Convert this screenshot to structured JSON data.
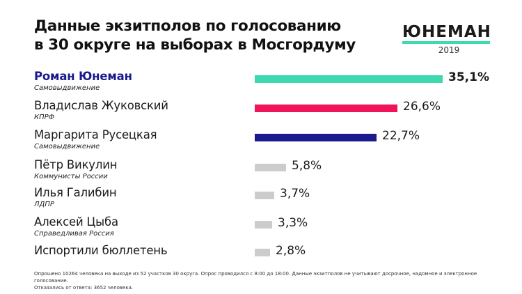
{
  "title_line1": "Данные экзитполов по голосованию",
  "title_line2": "в 30 округе на выборах в Мосгордуму",
  "logo": {
    "name": "ЮНЕМАН",
    "year": "2019"
  },
  "colors": {
    "accent": "#3fd9b0",
    "kprf": "#f0155a",
    "navy": "#1a1a8c",
    "gray": "#cccccc"
  },
  "chart_data": {
    "type": "bar",
    "orientation": "horizontal",
    "categories": [
      "Роман Юнеман",
      "Владислав Жуковский",
      "Маргарита Русецкая",
      "Пётр Викулин",
      "Илья Галибин",
      "Алексей Цыба",
      "Испортили бюллетень"
    ],
    "values": [
      35.1,
      26.6,
      22.7,
      5.8,
      3.7,
      3.3,
      2.8
    ],
    "items": [
      {
        "name": "Роман Юнеман",
        "party": "Самовыдвижение",
        "value": 35.1,
        "label": "35,1%",
        "color": "#3fd9b0",
        "lead": true
      },
      {
        "name": "Владислав Жуковский",
        "party": "КПРФ",
        "value": 26.6,
        "label": "26,6%",
        "color": "#f0155a",
        "lead": false
      },
      {
        "name": "Маргарита Русецкая",
        "party": "Самовыдвижение",
        "value": 22.7,
        "label": "22,7%",
        "color": "#1a1a8c",
        "lead": false
      },
      {
        "name": "Пётр Викулин",
        "party": "Коммунисты России",
        "value": 5.8,
        "label": "5,8%",
        "color": "#cccccc",
        "lead": false
      },
      {
        "name": "Илья Галибин",
        "party": "ЛДПР",
        "value": 3.7,
        "label": "3,7%",
        "color": "#cccccc",
        "lead": false
      },
      {
        "name": "Алексей Цыба",
        "party": "Справедливая Россия",
        "value": 3.3,
        "label": "3,3%",
        "color": "#cccccc",
        "lead": false
      },
      {
        "name": "Испортили бюллетень",
        "party": "",
        "value": 2.8,
        "label": "2,8%",
        "color": "#cccccc",
        "lead": false
      }
    ],
    "xlim": [
      0,
      35.1
    ],
    "grid": false
  },
  "footnote_line1": "Опрошено 10264 человека на выходе из 52 участков 30 округа. Опрос проводился с 8:00 до 18:00. Данные экзитполов не учитывают досрочное, надомное и электронное голосование.",
  "footnote_line2": "Отказались от ответа: 3652 человека."
}
